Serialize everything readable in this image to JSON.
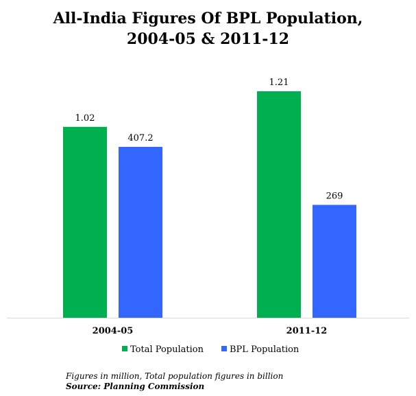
{
  "chart_data": {
    "type": "bar",
    "title_line1": "All-India Figures Of BPL Population,",
    "title_line2": "2004-05 & 2011-12",
    "categories": [
      "2004-05",
      "2011-12"
    ],
    "series": [
      {
        "name": "Total Population",
        "values": [
          1.02,
          1.21
        ],
        "labels": [
          "1.02",
          "1.21"
        ],
        "color": "#00b050"
      },
      {
        "name": "BPL Population",
        "values": [
          407.2,
          269
        ],
        "labels": [
          "407.2",
          "269"
        ],
        "color": "#3366ff"
      }
    ],
    "legend_position": "bottom",
    "grid": false
  },
  "notes": {
    "line1": "Figures in million, Total population figures in billion",
    "line2": "Source: Planning Commission"
  }
}
